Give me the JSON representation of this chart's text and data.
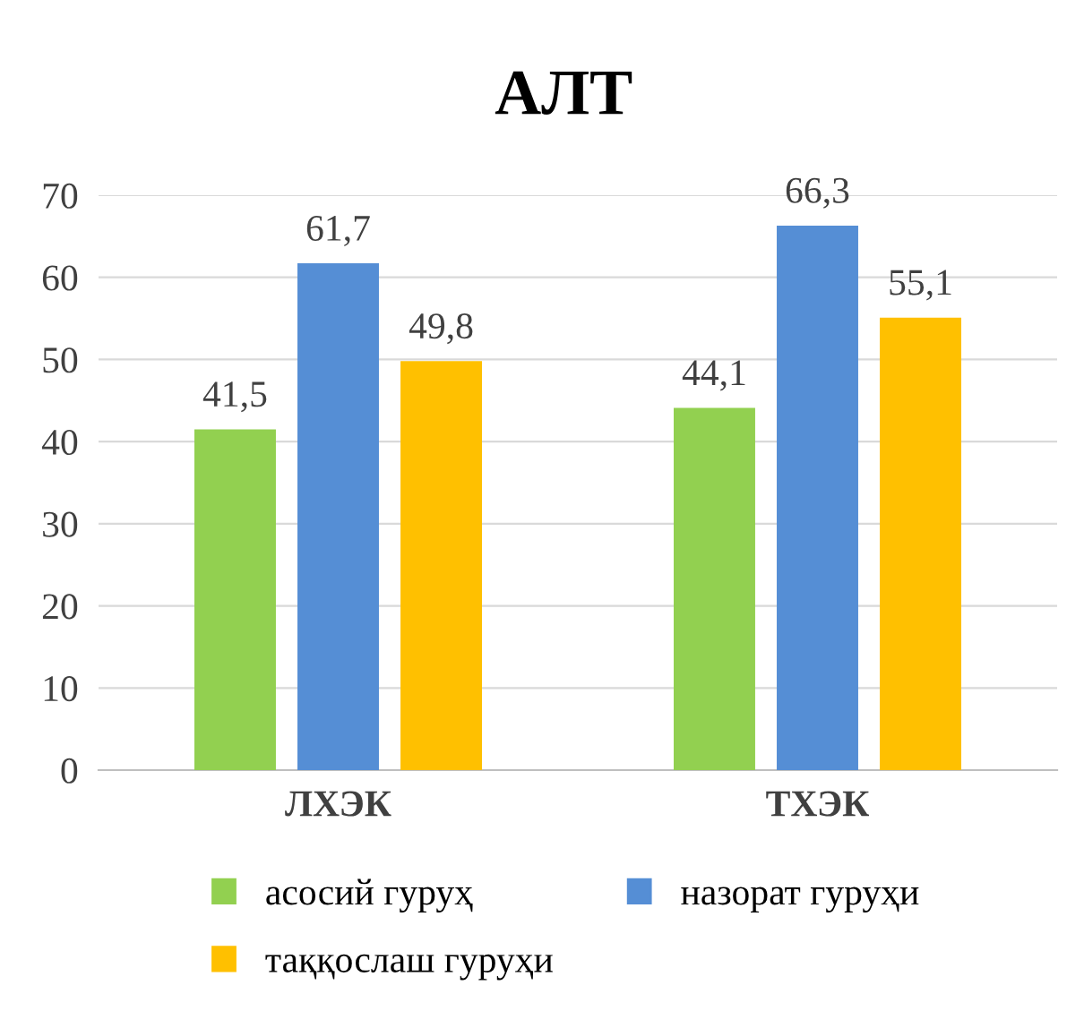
{
  "chart_data": {
    "type": "bar",
    "title": "АЛТ",
    "categories": [
      "ЛХЭК",
      "ТХЭК"
    ],
    "series": [
      {
        "name": "асосий гуруҳ",
        "color": "#92d050",
        "values": [
          41.5,
          44.1
        ],
        "value_labels": [
          "41,5",
          "44,1"
        ]
      },
      {
        "name": "назорат гуруҳи",
        "color": "#558ed5",
        "values": [
          61.7,
          66.3
        ],
        "value_labels": [
          "61,7",
          "66,3"
        ]
      },
      {
        "name": "таққослаш гуруҳи",
        "color": "#ffc000",
        "values": [
          49.8,
          55.1
        ],
        "value_labels": [
          "49,8",
          "55,1"
        ]
      }
    ],
    "ylim": [
      0,
      70
    ],
    "yticks": [
      0,
      10,
      20,
      30,
      40,
      50,
      60,
      70
    ],
    "grid": "y",
    "legend": "bottom"
  }
}
